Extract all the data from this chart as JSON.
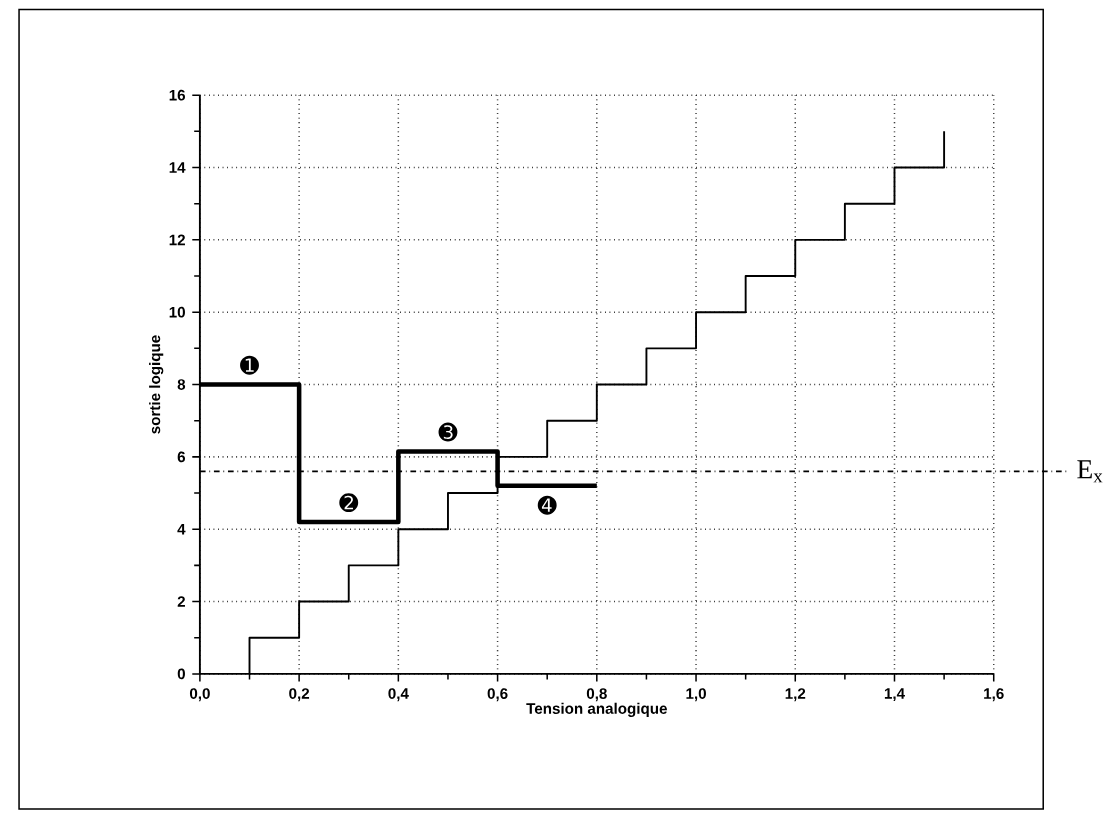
{
  "chart_data": {
    "type": "step",
    "xlabel": "Tension analogique",
    "ylabel": "sortie logique",
    "series": [
      {
        "color": "#000000",
        "x": [
          0.1,
          0.1,
          0.2,
          0.3,
          0.4,
          0.5,
          0.6,
          0.7,
          0.8,
          0.9,
          1.0,
          1.1,
          1.2,
          1.3,
          1.4,
          1.5
        ],
        "values": [
          0,
          1,
          2,
          3,
          4,
          5,
          6,
          7,
          8,
          9,
          10,
          11,
          12,
          13,
          14,
          15
        ]
      },
      {
        "color": "#000000",
        "x": [
          0.0,
          0.2,
          0.4,
          0.6,
          0.8
        ],
        "values": [
          8,
          4.2,
          6.15,
          5.2,
          5.2
        ]
      }
    ],
    "xlim": [
      0,
      1.6
    ],
    "ylim": [
      0,
      16
    ],
    "xticks": [
      {
        "value": 0,
        "label": "0,0"
      },
      {
        "value": 0.2,
        "label": "0,2"
      },
      {
        "value": 0.4,
        "label": "0,4"
      },
      {
        "value": 0.6,
        "label": "0,6"
      },
      {
        "value": 0.8,
        "label": "0,8"
      },
      {
        "value": 1.0,
        "label": "1,0"
      },
      {
        "value": 1.2,
        "label": "1,2"
      },
      {
        "value": 1.4,
        "label": "1,4"
      },
      {
        "value": 1.6,
        "label": "1,6"
      }
    ],
    "yticks": [
      0,
      2,
      4,
      6,
      8,
      10,
      12,
      14,
      16
    ],
    "grid": true,
    "ref_lines": [
      {
        "axis": "y",
        "value": 5.6,
        "label": "E$_{x}$",
        "line_style": "dashdot"
      }
    ],
    "annotations": [
      {
        "text": "➊",
        "x": 0.1,
        "y": 8
      },
      {
        "text": "➋",
        "x": 0.3,
        "y": 4.2
      },
      {
        "text": "➌",
        "x": 0.5,
        "y": 6.15
      },
      {
        "text": "➍",
        "x": 0.7,
        "y": 5.2
      }
    ]
  }
}
